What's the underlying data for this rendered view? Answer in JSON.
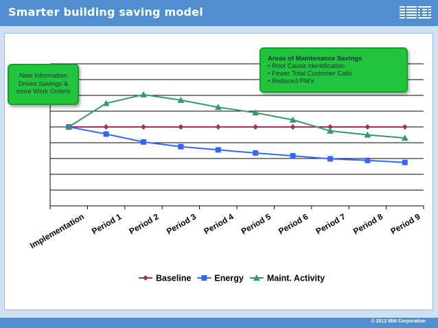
{
  "slide": {
    "title": "Smarter building saving model",
    "logo_text": "IBM",
    "copyright": "© 2012 IBM Corporation"
  },
  "callouts": {
    "left": [
      "New Information",
      "Drives Savings &",
      "more Work Orders"
    ],
    "right": {
      "heading": "Areas of Maintenance Savings",
      "items": [
        "Root Cause Identification",
        "Fewer Total Customer Calls",
        "Reduced PM’s"
      ]
    }
  },
  "colors": {
    "header": "#4f8fcf",
    "callout": "#22c33d",
    "baseline": "#993366",
    "energy": "#3366ff",
    "maint": "#339966"
  },
  "chart_data": {
    "type": "line",
    "categories": [
      "Implementation",
      "Period 1",
      "Period 2",
      "Period 3",
      "Period 4",
      "Period 5",
      "Period 6",
      "Period 7",
      "Period 8",
      "Period 9"
    ],
    "ylim": [
      0,
      9
    ],
    "grid": true,
    "legend": "bottom",
    "series": [
      {
        "name": "Baseline",
        "marker": "diamond",
        "values": [
          5,
          5,
          5,
          5,
          5,
          5,
          5,
          5,
          5,
          5
        ]
      },
      {
        "name": "Energy",
        "marker": "square",
        "values": [
          5,
          4.55,
          4.05,
          3.75,
          3.55,
          3.35,
          3.17,
          2.98,
          2.88,
          2.75
        ]
      },
      {
        "name": "Maint. Activity",
        "marker": "triangle",
        "values": [
          5,
          6.5,
          7.05,
          6.7,
          6.25,
          5.9,
          5.45,
          4.75,
          4.5,
          4.3
        ]
      }
    ]
  }
}
